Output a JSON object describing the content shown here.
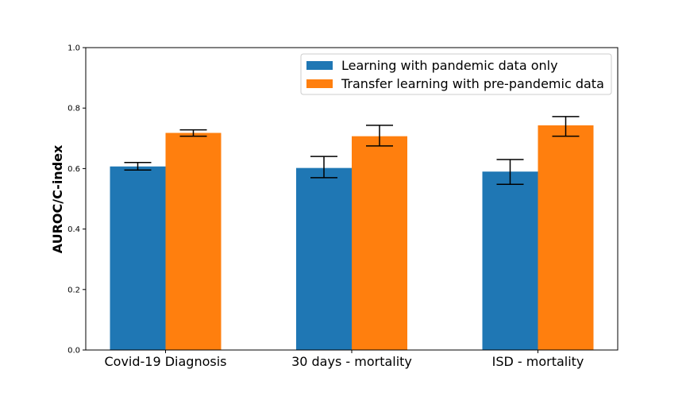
{
  "chart_data": {
    "type": "bar",
    "categories": [
      "Covid-19 Diagnosis",
      "30 days - mortality",
      "ISD - mortality"
    ],
    "series": [
      {
        "name": "Learning with pandemic data only",
        "color": "#1f77b4",
        "values": [
          0.607,
          0.602,
          0.59
        ],
        "error_low": [
          0.595,
          0.57,
          0.548
        ],
        "error_high": [
          0.62,
          0.64,
          0.63
        ]
      },
      {
        "name": "Transfer learning with pre-pandemic data",
        "color": "#ff7f0e",
        "values": [
          0.718,
          0.707,
          0.743
        ],
        "error_low": [
          0.707,
          0.675,
          0.707
        ],
        "error_high": [
          0.728,
          0.743,
          0.772
        ]
      }
    ],
    "ylabel": "AUROC/C-index",
    "xlabel": "",
    "ylim": [
      0,
      1.0
    ],
    "yticks": [
      "0.0",
      "0.2",
      "0.4",
      "0.6",
      "0.8",
      "1.0"
    ],
    "grid": false,
    "legend_position": "top-right"
  }
}
